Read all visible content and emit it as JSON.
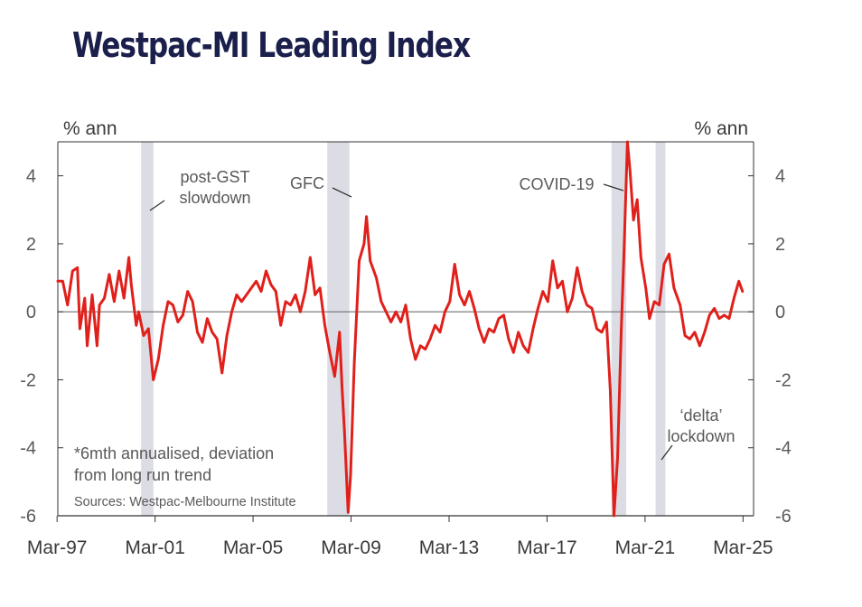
{
  "chart_data": {
    "type": "line",
    "title": "Westpac-MI Leading Index",
    "ylabel_left": "% ann",
    "ylabel_right": "% ann",
    "ylim": [
      -6,
      5
    ],
    "y_ticks": [
      4,
      2,
      0,
      -2,
      -4,
      -6
    ],
    "y_tick_labels": [
      "4",
      "2",
      "0",
      "-2",
      "-4",
      "-6"
    ],
    "x_range": [
      1997.2,
      2025.6
    ],
    "x_ticks": [
      1997.17,
      2001.17,
      2005.17,
      2009.17,
      2013.17,
      2017.17,
      2021.17,
      2025.17
    ],
    "x_tick_labels": [
      "Mar-97",
      "Mar-01",
      "Mar-05",
      "Mar-09",
      "Mar-13",
      "Mar-17",
      "Mar-21",
      "Mar-25"
    ],
    "zero_line": true,
    "shaded_periods": [
      [
        2000.6,
        2001.1
      ],
      [
        2008.2,
        2009.1
      ],
      [
        2019.8,
        2020.4
      ],
      [
        2021.6,
        2022.0
      ]
    ],
    "annotations": [
      {
        "text_lines": [
          "post-GST",
          "slowdown"
        ]
      },
      {
        "text_lines": [
          "GFC"
        ]
      },
      {
        "text_lines": [
          "COVID-19"
        ]
      },
      {
        "text_lines": [
          "‘delta’",
          "lockdown"
        ]
      }
    ],
    "footnote_lines": [
      "*6mth annualised, deviation",
      "from long run trend"
    ],
    "source": "Sources: Westpac-Melbourne Institute",
    "series": [
      {
        "color": "#e0201b",
        "points": [
          [
            1997.2,
            0.9
          ],
          [
            1997.4,
            0.9
          ],
          [
            1997.6,
            0.2
          ],
          [
            1997.8,
            1.2
          ],
          [
            1998.0,
            1.3
          ],
          [
            1998.1,
            -0.5
          ],
          [
            1998.3,
            0.4
          ],
          [
            1998.4,
            -1.0
          ],
          [
            1998.6,
            0.5
          ],
          [
            1998.8,
            -1.0
          ],
          [
            1998.9,
            0.2
          ],
          [
            1999.1,
            0.4
          ],
          [
            1999.3,
            1.1
          ],
          [
            1999.5,
            0.3
          ],
          [
            1999.7,
            1.2
          ],
          [
            1999.9,
            0.4
          ],
          [
            2000.1,
            1.6
          ],
          [
            2000.2,
            0.8
          ],
          [
            2000.4,
            -0.4
          ],
          [
            2000.5,
            0.0
          ],
          [
            2000.7,
            -0.7
          ],
          [
            2000.9,
            -0.5
          ],
          [
            2001.1,
            -2.0
          ],
          [
            2001.3,
            -1.4
          ],
          [
            2001.5,
            -0.4
          ],
          [
            2001.7,
            0.3
          ],
          [
            2001.9,
            0.2
          ],
          [
            2002.1,
            -0.3
          ],
          [
            2002.3,
            -0.1
          ],
          [
            2002.5,
            0.6
          ],
          [
            2002.7,
            0.3
          ],
          [
            2002.9,
            -0.6
          ],
          [
            2003.1,
            -0.9
          ],
          [
            2003.3,
            -0.2
          ],
          [
            2003.5,
            -0.6
          ],
          [
            2003.7,
            -0.8
          ],
          [
            2003.9,
            -1.8
          ],
          [
            2004.1,
            -0.7
          ],
          [
            2004.3,
            0.0
          ],
          [
            2004.5,
            0.5
          ],
          [
            2004.7,
            0.3
          ],
          [
            2004.9,
            0.5
          ],
          [
            2005.1,
            0.7
          ],
          [
            2005.3,
            0.9
          ],
          [
            2005.5,
            0.6
          ],
          [
            2005.7,
            1.2
          ],
          [
            2005.9,
            0.8
          ],
          [
            2006.1,
            0.6
          ],
          [
            2006.3,
            -0.4
          ],
          [
            2006.5,
            0.3
          ],
          [
            2006.7,
            0.2
          ],
          [
            2006.9,
            0.5
          ],
          [
            2007.1,
            0.0
          ],
          [
            2007.3,
            0.6
          ],
          [
            2007.5,
            1.6
          ],
          [
            2007.7,
            0.5
          ],
          [
            2007.9,
            0.7
          ],
          [
            2008.1,
            -0.4
          ],
          [
            2008.3,
            -1.2
          ],
          [
            2008.5,
            -1.9
          ],
          [
            2008.7,
            -0.6
          ],
          [
            2008.8,
            -2.2
          ],
          [
            2008.9,
            -3.5
          ],
          [
            2009.05,
            -5.9
          ],
          [
            2009.15,
            -4.8
          ],
          [
            2009.3,
            -1.5
          ],
          [
            2009.5,
            1.5
          ],
          [
            2009.7,
            2.0
          ],
          [
            2009.8,
            2.8
          ],
          [
            2009.95,
            1.5
          ],
          [
            2010.2,
            1.0
          ],
          [
            2010.4,
            0.3
          ],
          [
            2010.6,
            0.0
          ],
          [
            2010.8,
            -0.3
          ],
          [
            2011.0,
            0.0
          ],
          [
            2011.2,
            -0.3
          ],
          [
            2011.4,
            0.2
          ],
          [
            2011.6,
            -0.8
          ],
          [
            2011.8,
            -1.4
          ],
          [
            2012.0,
            -1.0
          ],
          [
            2012.2,
            -1.1
          ],
          [
            2012.4,
            -0.8
          ],
          [
            2012.6,
            -0.4
          ],
          [
            2012.8,
            -0.6
          ],
          [
            2013.0,
            0.0
          ],
          [
            2013.2,
            0.3
          ],
          [
            2013.4,
            1.4
          ],
          [
            2013.6,
            0.5
          ],
          [
            2013.8,
            0.2
          ],
          [
            2014.0,
            0.6
          ],
          [
            2014.2,
            0.1
          ],
          [
            2014.4,
            -0.5
          ],
          [
            2014.6,
            -0.9
          ],
          [
            2014.8,
            -0.5
          ],
          [
            2015.0,
            -0.6
          ],
          [
            2015.2,
            -0.2
          ],
          [
            2015.4,
            -0.1
          ],
          [
            2015.6,
            -0.8
          ],
          [
            2015.8,
            -1.2
          ],
          [
            2016.0,
            -0.6
          ],
          [
            2016.2,
            -1.0
          ],
          [
            2016.4,
            -1.2
          ],
          [
            2016.6,
            -0.5
          ],
          [
            2016.8,
            0.1
          ],
          [
            2017.0,
            0.6
          ],
          [
            2017.2,
            0.3
          ],
          [
            2017.4,
            1.5
          ],
          [
            2017.6,
            0.7
          ],
          [
            2017.8,
            0.9
          ],
          [
            2018.0,
            0.0
          ],
          [
            2018.2,
            0.4
          ],
          [
            2018.4,
            1.3
          ],
          [
            2018.6,
            0.6
          ],
          [
            2018.8,
            0.2
          ],
          [
            2019.0,
            0.1
          ],
          [
            2019.2,
            -0.5
          ],
          [
            2019.4,
            -0.6
          ],
          [
            2019.6,
            -0.3
          ],
          [
            2019.75,
            -2.3
          ],
          [
            2019.9,
            -6.0
          ],
          [
            2020.05,
            -4.3
          ],
          [
            2020.2,
            -0.5
          ],
          [
            2020.3,
            1.5
          ],
          [
            2020.45,
            5.0
          ],
          [
            2020.55,
            4.2
          ],
          [
            2020.7,
            2.7
          ],
          [
            2020.85,
            3.3
          ],
          [
            2021.0,
            1.6
          ],
          [
            2021.2,
            0.7
          ],
          [
            2021.35,
            -0.2
          ],
          [
            2021.55,
            0.3
          ],
          [
            2021.75,
            0.2
          ],
          [
            2021.95,
            1.4
          ],
          [
            2022.15,
            1.7
          ],
          [
            2022.35,
            0.7
          ],
          [
            2022.6,
            0.2
          ],
          [
            2022.8,
            -0.7
          ],
          [
            2023.0,
            -0.8
          ],
          [
            2023.2,
            -0.6
          ],
          [
            2023.4,
            -1.0
          ],
          [
            2023.6,
            -0.6
          ],
          [
            2023.8,
            -0.1
          ],
          [
            2024.0,
            0.1
          ],
          [
            2024.2,
            -0.2
          ],
          [
            2024.4,
            -0.1
          ],
          [
            2024.6,
            -0.2
          ],
          [
            2024.8,
            0.4
          ],
          [
            2025.0,
            0.9
          ],
          [
            2025.15,
            0.6
          ]
        ]
      }
    ]
  }
}
